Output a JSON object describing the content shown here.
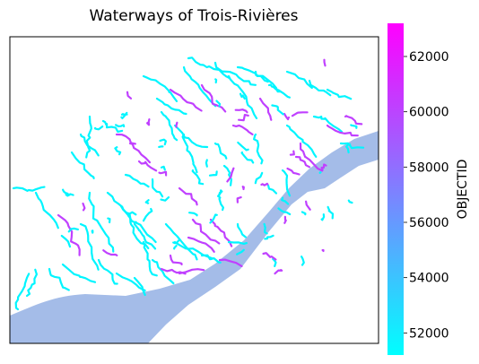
{
  "title": "Waterways of Trois-Rivières",
  "colorbar": {
    "label": "OBJECTID",
    "min": 51200,
    "max": 63200,
    "ticks": [
      "52000",
      "54000",
      "56000",
      "58000",
      "60000",
      "62000"
    ],
    "tick_values": [
      52000,
      54000,
      56000,
      58000,
      60000,
      62000
    ],
    "cmap": [
      "#00ffff",
      "#ff00ff"
    ]
  },
  "colors": {
    "river_fill": "#a4bce8",
    "frame": "#000000",
    "low_objectid": "#00f5ff",
    "high_objectid": "#c040ff"
  },
  "map_data": {
    "type": "line-map",
    "layers": [
      "St. Lawrence River (polygon)",
      "waterways (polylines colored by OBJECTID)"
    ]
  }
}
